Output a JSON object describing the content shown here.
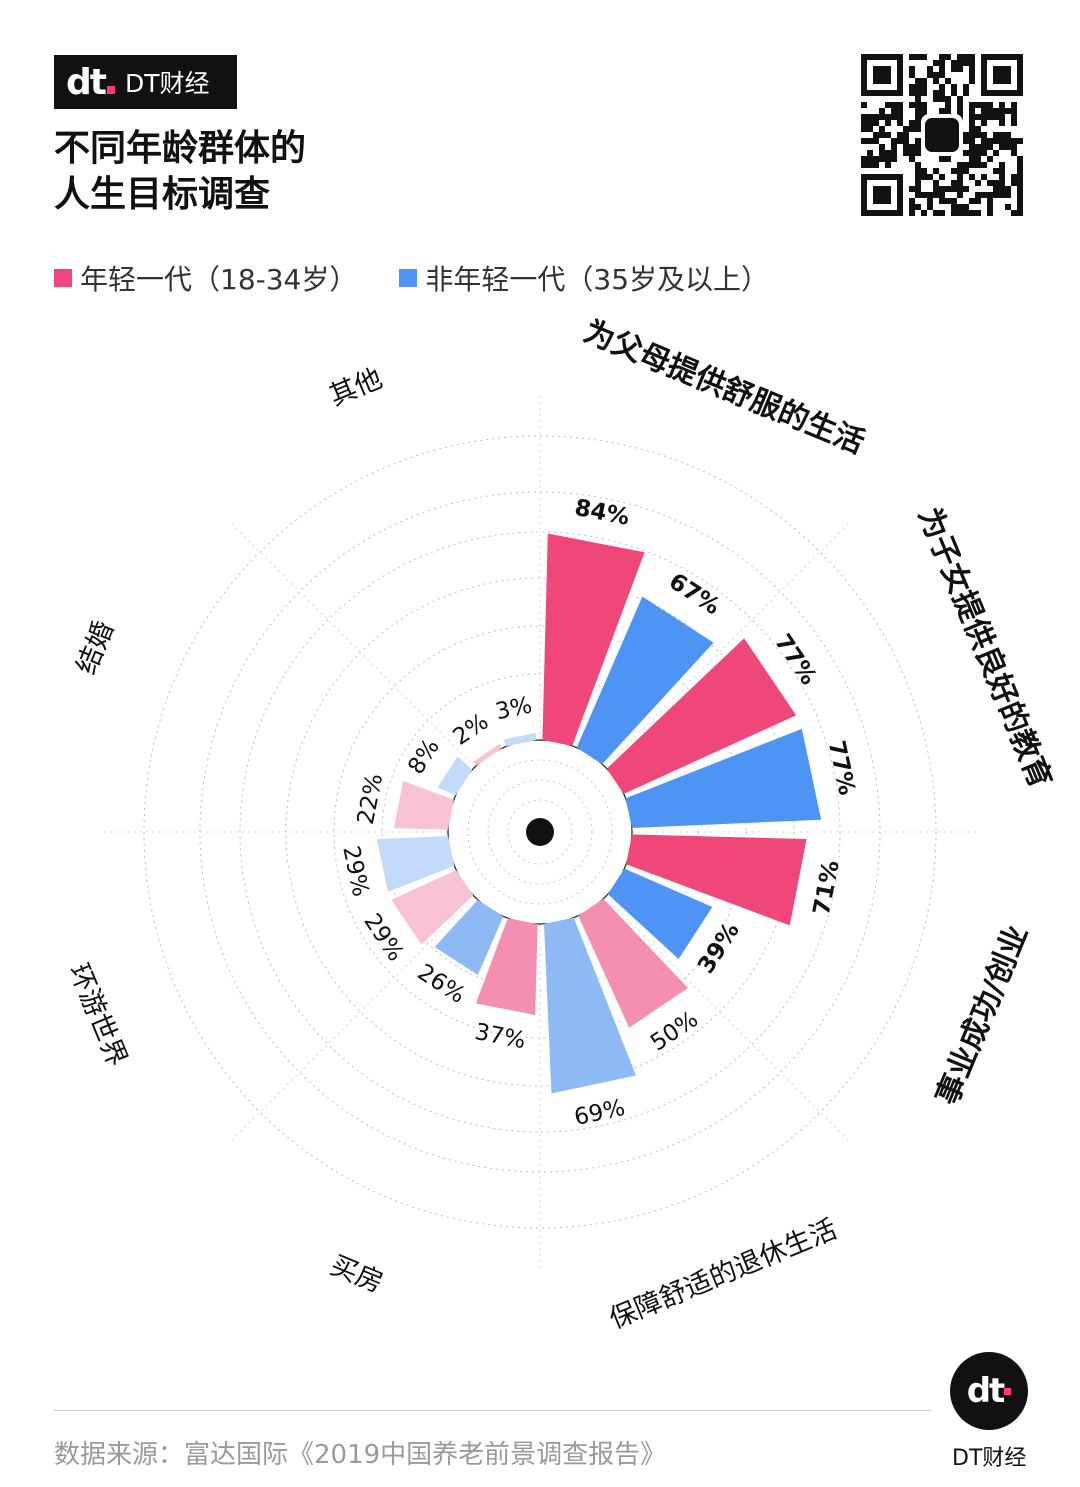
{
  "brand": {
    "name": "DT财经",
    "logo_text": "dt"
  },
  "title": {
    "line1": "不同年龄群体的",
    "line2": "人生目标调查"
  },
  "legend": [
    {
      "label": "年轻一代（18-34岁）",
      "color": "#f0477b"
    },
    {
      "label": "非年轻一代（35岁及以上）",
      "color": "#4d94f5"
    }
  ],
  "chart_data": {
    "type": "polar-bar",
    "categories": [
      "为父母提供舒服的生活",
      "为子女提供良好的教育",
      "事业成功/创业",
      "保障舒适的退休生活",
      "买房",
      "环游世界",
      "结婚",
      "其他"
    ],
    "series": [
      {
        "name": "年轻一代（18-34岁）",
        "values": [
          84,
          77,
          71,
          50,
          37,
          29,
          22,
          2
        ]
      },
      {
        "name": "非年轻一代（35岁及以上）",
        "values": [
          67,
          77,
          39,
          69,
          26,
          29,
          8,
          3
        ]
      }
    ],
    "value_labels": {
      "young": [
        "84%",
        "77%",
        "71%",
        "50%",
        "37%",
        "29%",
        "22%",
        "2%"
      ],
      "old": [
        "67%",
        "77%",
        "39%",
        "69%",
        "26%",
        "29%",
        "8%",
        "3%"
      ]
    },
    "rlim": [
      0,
      100
    ],
    "colors": {
      "young_strong": "#f0477b",
      "old_strong": "#4d94f5",
      "young_light": "#f58fb0",
      "old_light": "#8db9f5",
      "young_faint": "#f9c2d4",
      "old_faint": "#c3dafa"
    }
  },
  "source": "数据来源：富达国际《2019中国养老前景调查报告》",
  "corner": {
    "logo_text": "dt",
    "name": "DT财经"
  }
}
